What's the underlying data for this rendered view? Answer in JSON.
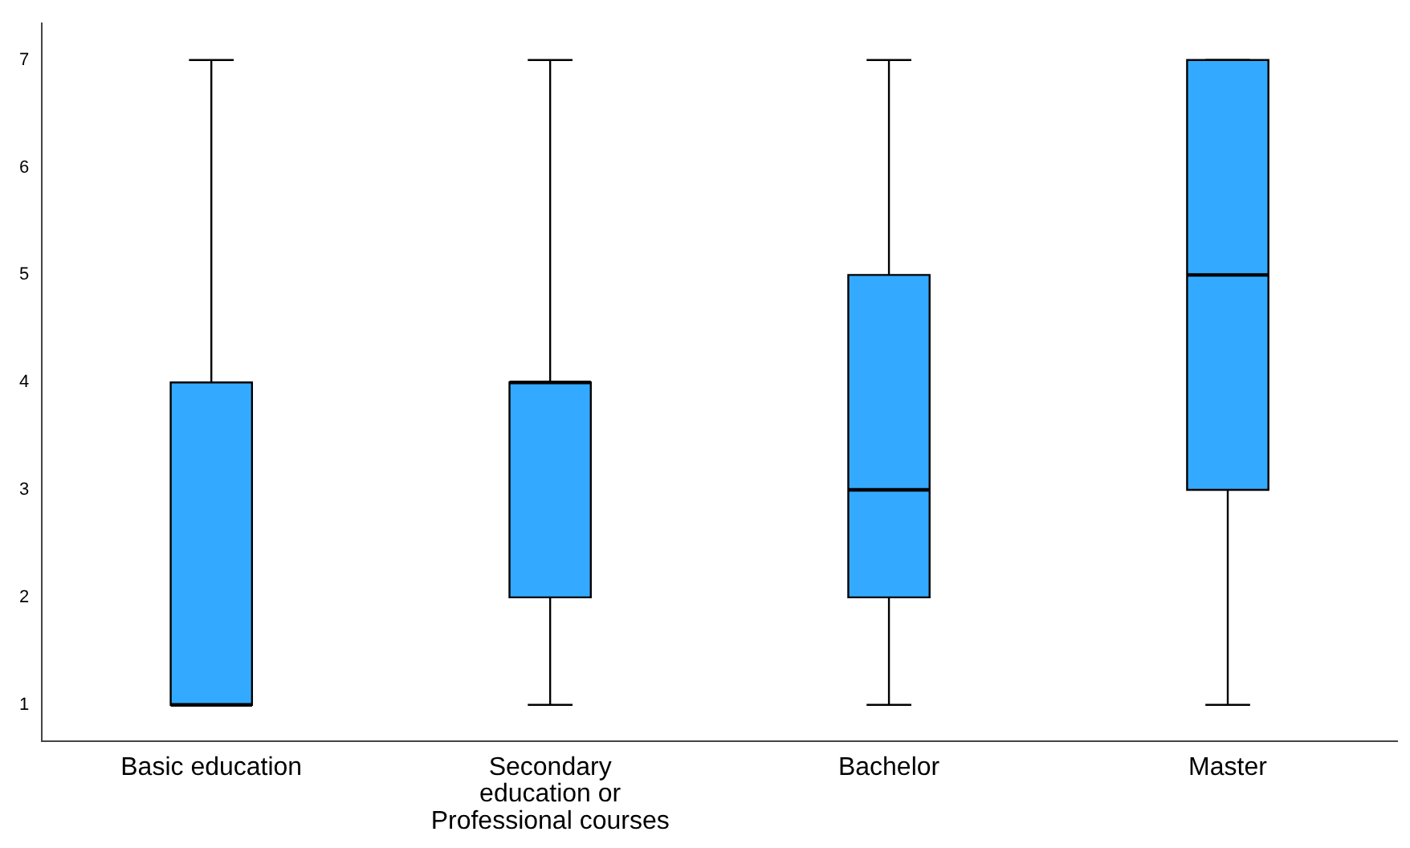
{
  "chart_data": {
    "type": "box",
    "categories": [
      "Basic education",
      "Secondary education or Professional courses",
      "Bachelor",
      "Master"
    ],
    "color": "#33aaff",
    "boxes": [
      {
        "low": 1,
        "q1": 1,
        "median": 1,
        "q3": 4,
        "high": 7
      },
      {
        "low": 1,
        "q1": 2,
        "median": 4,
        "q3": 4,
        "high": 7
      },
      {
        "low": 1,
        "q1": 2,
        "median": 3,
        "q3": 5,
        "high": 7
      },
      {
        "low": 1,
        "q1": 3,
        "median": 5,
        "q3": 7,
        "high": 7
      }
    ],
    "ylim": [
      0.66,
      7.34
    ],
    "yticks": [
      1,
      2,
      3,
      4,
      5,
      6,
      7
    ],
    "grid": false,
    "legend": false
  }
}
